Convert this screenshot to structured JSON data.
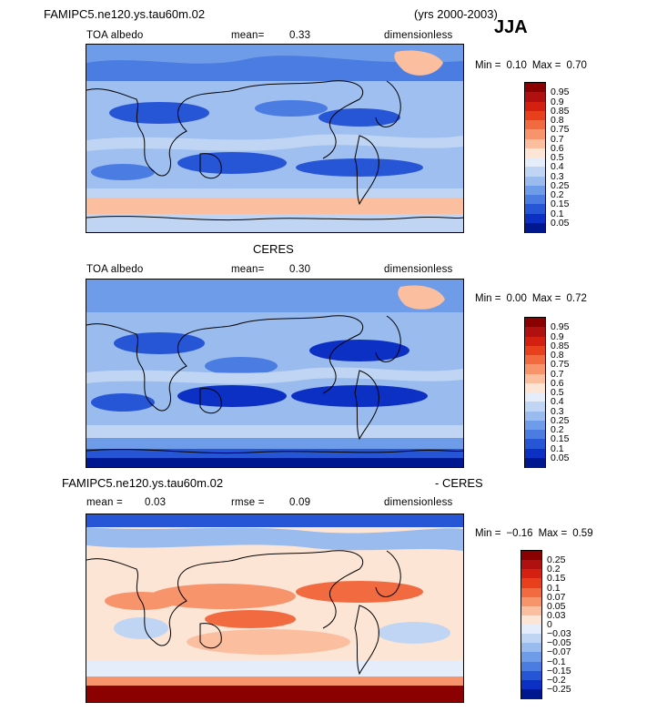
{
  "header": {
    "title": "FAMIPC5.ne120.ys.tau60m.02",
    "years": "(yrs 2000-2003)",
    "season": "JJA"
  },
  "panels": [
    {
      "id": "model",
      "title": "",
      "left": "TOA albedo",
      "mid_label": "mean=",
      "mid_value": "0.33",
      "right": "dimensionless",
      "min_label": "Min =",
      "min_value": "0.10",
      "max_label": "Max =",
      "max_value": "0.70"
    },
    {
      "id": "obs",
      "title": "CERES",
      "left": "TOA albedo",
      "mid_label": "mean=",
      "mid_value": "0.30",
      "right": "dimensionless",
      "min_label": "Min =",
      "min_value": "0.00",
      "max_label": "Max =",
      "max_value": "0.72"
    },
    {
      "id": "diff",
      "title_left": "FAMIPC5.ne120.ys.tau60m.02",
      "title_right": "- CERES",
      "left_label": "mean =",
      "left_value": "0.03",
      "mid_label": "rmse =",
      "mid_value": "0.09",
      "right": "dimensionless",
      "min_label": "Min =",
      "min_value": "−0.16",
      "max_label": "Max =",
      "max_value": "0.59"
    }
  ],
  "colorbars": {
    "albedo": {
      "labels": [
        "0.95",
        "0.9",
        "0.85",
        "0.8",
        "0.75",
        "0.7",
        "0.6",
        "0.5",
        "0.4",
        "0.3",
        "0.25",
        "0.2",
        "0.15",
        "0.1",
        "0.05"
      ],
      "colors": [
        "#8b0000",
        "#b01010",
        "#d42010",
        "#e8401c",
        "#f26a40",
        "#f7946c",
        "#fbbfa0",
        "#fde5d6",
        "#e4edf9",
        "#c0d5f3",
        "#99bbee",
        "#6f9ce8",
        "#4a7ce2",
        "#2656d6",
        "#0c2fc4",
        "#00188f"
      ]
    },
    "diff": {
      "labels": [
        "0.25",
        "0.2",
        "0.15",
        "0.1",
        "0.07",
        "0.05",
        "0.03",
        "0",
        "−0.03",
        "−0.05",
        "−0.07",
        "−0.1",
        "−0.15",
        "−0.2",
        "−0.25"
      ],
      "colors": [
        "#8b0000",
        "#b01010",
        "#d42010",
        "#e8401c",
        "#f26a40",
        "#f7946c",
        "#fbbfa0",
        "#fde5d6",
        "#e4edf9",
        "#c0d5f3",
        "#99bbee",
        "#6f9ce8",
        "#4a7ce2",
        "#2656d6",
        "#0c2fc4",
        "#00188f"
      ]
    }
  },
  "chart_data": [
    {
      "type": "heatmap",
      "title": "FAMIPC5.ne120.ys.tau60m.02",
      "subtitle": "(yrs 2000-2003) JJA",
      "variable": "TOA albedo",
      "units": "dimensionless",
      "mean": 0.33,
      "min": 0.1,
      "max": 0.7,
      "levels": [
        0.05,
        0.1,
        0.15,
        0.2,
        0.25,
        0.3,
        0.4,
        0.5,
        0.6,
        0.7,
        0.75,
        0.8,
        0.85,
        0.9,
        0.95
      ]
    },
    {
      "type": "heatmap",
      "title": "CERES",
      "variable": "TOA albedo",
      "units": "dimensionless",
      "mean": 0.3,
      "min": 0.0,
      "max": 0.72,
      "levels": [
        0.05,
        0.1,
        0.15,
        0.2,
        0.25,
        0.3,
        0.4,
        0.5,
        0.6,
        0.7,
        0.75,
        0.8,
        0.85,
        0.9,
        0.95
      ]
    },
    {
      "type": "heatmap",
      "title": "FAMIPC5.ne120.ys.tau60m.02 - CERES",
      "units": "dimensionless",
      "mean": 0.03,
      "rmse": 0.09,
      "min": -0.16,
      "max": 0.59,
      "levels": [
        -0.25,
        -0.2,
        -0.15,
        -0.1,
        -0.07,
        -0.05,
        -0.03,
        0,
        0.03,
        0.05,
        0.07,
        0.1,
        0.15,
        0.2,
        0.25
      ]
    }
  ]
}
